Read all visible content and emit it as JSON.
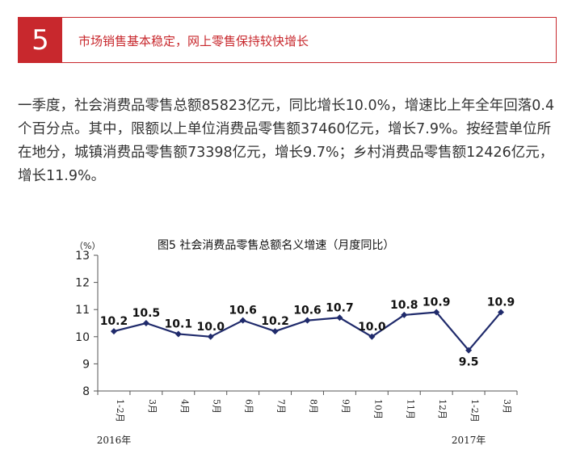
{
  "section": {
    "number": "5",
    "title": "市场销售基本稳定，网上零售保持较快增长"
  },
  "body_text": "一季度，社会消费品零售总额85823亿元，同比增长10.0%，增速比上年全年回落0.4个百分点。其中，限额以上单位消费品零售额37460亿元，增长7.9%。按经营单位所在地分，城镇消费品零售额73398亿元，增长9.7%；乡村消费品零售额12426亿元，增长11.9%。",
  "colors": {
    "accent": "#c8282d",
    "line": "#1f2a6b",
    "text": "#333333"
  },
  "chart_data": {
    "type": "line",
    "title": "图5  社会消费品零售总额名义增速（月度同比）",
    "ylabel": "（%）",
    "ylim": [
      8,
      13
    ],
    "yticks": [
      "8",
      "9",
      "10",
      "11",
      "12",
      "13"
    ],
    "categories": [
      "1-2月",
      "3月",
      "4月",
      "5月",
      "6月",
      "7月",
      "8月",
      "9月",
      "10月",
      "11月",
      "12月",
      "1-2月",
      "3月"
    ],
    "values": [
      10.2,
      10.5,
      10.1,
      10.0,
      10.6,
      10.2,
      10.6,
      10.7,
      10.0,
      10.8,
      10.9,
      9.5,
      10.9
    ],
    "data_labels": [
      "10.2",
      "10.5",
      "10.1",
      "10.0",
      "10.6",
      "10.2",
      "10.6",
      "10.7",
      "10.0",
      "10.8",
      "10.9",
      "9.5",
      "10.9"
    ],
    "year_labels": [
      {
        "text": "2016年",
        "category_index": 0
      },
      {
        "text": "2017年",
        "category_index": 11
      }
    ],
    "grid": false
  }
}
